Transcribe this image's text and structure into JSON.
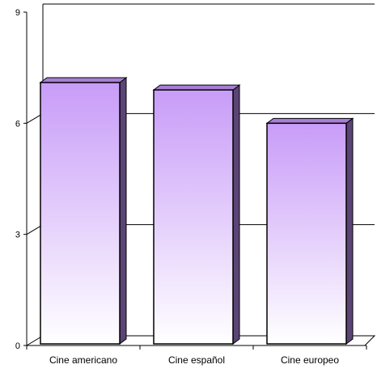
{
  "chart_data": {
    "type": "bar",
    "title": "",
    "xlabel": "",
    "ylabel": "",
    "categories": [
      "Cine americano",
      "Cine español",
      "Cine europeo"
    ],
    "values": [
      7.1,
      6.9,
      6.0
    ],
    "ylim": [
      0,
      9
    ],
    "yticks": [
      0,
      3,
      6,
      9
    ],
    "grid": true,
    "legend": "none",
    "bar_style": "3d",
    "colors": {
      "bar_top": "#c89cf8",
      "bar_bottom": "#ffffff",
      "bar_side": "#5b4575",
      "bar_cap": "#a77fd4",
      "floor": "#ffffff",
      "grid": "#000000"
    }
  }
}
